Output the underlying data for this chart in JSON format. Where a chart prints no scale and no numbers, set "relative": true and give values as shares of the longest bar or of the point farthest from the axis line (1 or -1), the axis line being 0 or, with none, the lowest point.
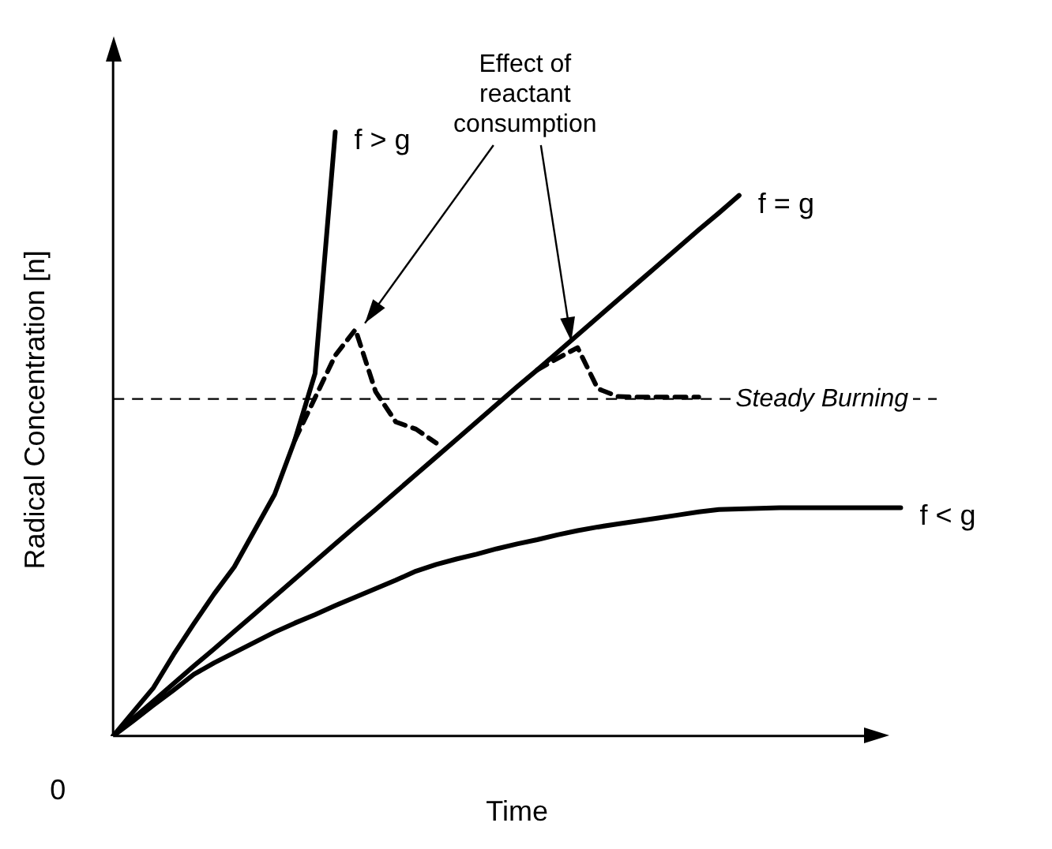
{
  "chart_data": {
    "type": "line",
    "relative": true,
    "xlabel": "Time",
    "ylabel": "Radical Concentration [n]",
    "legend": false,
    "grid": false,
    "tick_labels": false,
    "marker": "none",
    "categories": [
      null,
      null,
      null,
      null,
      null,
      null,
      null,
      null,
      null,
      null,
      null,
      null,
      null,
      null,
      null,
      null,
      null,
      null,
      null,
      null,
      null,
      null,
      null,
      null,
      null,
      null,
      null,
      null,
      null,
      null,
      null,
      null,
      null,
      null,
      null,
      null,
      null,
      null,
      null,
      null,
      null
    ],
    "series": [
      {
        "name": "f > g",
        "color": "#000000",
        "line_style": "solid",
        "values": [
          0,
          0.04,
          0.08,
          0.135,
          0.186,
          0.235,
          0.28,
          0.34,
          0.4,
          0.49,
          0.6,
          1,
          null,
          null,
          null,
          null,
          null,
          null,
          null,
          null,
          null,
          null,
          null,
          null,
          null,
          null,
          null,
          null,
          null,
          null,
          null,
          null,
          null,
          null,
          null,
          null,
          null,
          null,
          null,
          null,
          null
        ]
      },
      {
        "name": "f = g",
        "color": "#000000",
        "line_style": "solid",
        "values": [
          0,
          0.029,
          0.058,
          0.087,
          0.116,
          0.144,
          0.173,
          0.202,
          0.231,
          0.26,
          0.289,
          0.318,
          0.347,
          0.375,
          0.404,
          0.433,
          0.462,
          0.491,
          0.52,
          0.549,
          0.578,
          0.606,
          0.635,
          0.664,
          0.693,
          0.722,
          0.751,
          0.78,
          0.809,
          0.838,
          0.866,
          0.895,
          null,
          null,
          null,
          null,
          null,
          null,
          null,
          null,
          null
        ]
      },
      {
        "name": "f < g",
        "color": "#000000",
        "line_style": "solid",
        "values": [
          0,
          0.025,
          0.051,
          0.076,
          0.102,
          0.121,
          0.138,
          0.155,
          0.172,
          0.187,
          0.201,
          0.216,
          0.23,
          0.244,
          0.258,
          0.273,
          0.284,
          0.293,
          0.301,
          0.31,
          0.318,
          0.325,
          0.333,
          0.34,
          0.346,
          0.351,
          0.356,
          0.361,
          0.366,
          0.371,
          0.375,
          0.376,
          0.377,
          0.378,
          0.378,
          0.378,
          0.378,
          0.378,
          0.378,
          0.378,
          null
        ]
      },
      {
        "color": "#000000",
        "line_style": "dashed",
        "values": [
          null,
          null,
          null,
          null,
          null,
          null,
          null,
          null,
          null,
          0.49,
          0.56,
          0.63,
          0.673,
          0.57,
          0.52,
          0.508,
          0.485,
          null,
          null,
          null,
          null,
          null,
          null,
          null,
          null,
          null,
          null,
          null,
          null,
          null,
          null,
          null,
          null,
          null,
          null,
          null,
          null,
          null,
          null,
          null,
          null
        ]
      },
      {
        "color": "#000000",
        "line_style": "dashed",
        "values": [
          null,
          null,
          null,
          null,
          null,
          null,
          null,
          null,
          null,
          null,
          null,
          null,
          null,
          null,
          null,
          null,
          null,
          null,
          null,
          null,
          null,
          0.606,
          0.625,
          0.643,
          0.575,
          0.562,
          0.561,
          0.561,
          0.561,
          0.561,
          null,
          null,
          null,
          null,
          null,
          null,
          null,
          null,
          null,
          null,
          null
        ]
      }
    ],
    "ref_lines": [
      {
        "axis": "y",
        "value": 0.558,
        "label": "Steady Burning",
        "line_style": "dashed",
        "color": "#000000"
      }
    ],
    "annotations": [
      "0",
      "Effect of reactant consumption"
    ]
  }
}
